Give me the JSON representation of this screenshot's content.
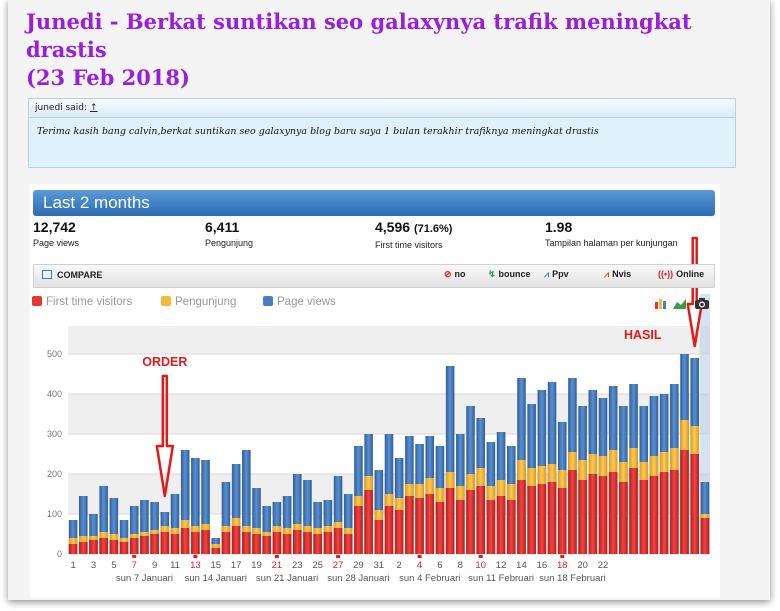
{
  "post": {
    "title_line1": "Junedi - Berkat suntikan seo galaxynya trafik meningkat drastis",
    "title_line2": "(23 Feb 2018)"
  },
  "quote": {
    "author_label": "junedi said:",
    "separator": "↑",
    "text": "Terima kasih bang calvin,berkat suntikan seo galaxynya blog baru saya 1 bulan terakhir trafiknya meningkat drastis"
  },
  "stats": {
    "period": "Last 2 months",
    "metrics": [
      {
        "value": "12,742",
        "suffix": "",
        "label": "Page views"
      },
      {
        "value": "6,411",
        "suffix": "",
        "label": "Pengunjung"
      },
      {
        "value": "4,596",
        "suffix": "(71.6%)",
        "label": "First time visitors"
      },
      {
        "value": "1.98",
        "suffix": "",
        "label": "Tampilan halaman per kunjungan"
      }
    ],
    "toolbar": {
      "compare": "COMPARE",
      "buttons": [
        {
          "icon": "no-icon",
          "label": "no"
        },
        {
          "icon": "bounce-icon",
          "label": "bounce"
        },
        {
          "icon": "ppv-icon",
          "label": "Ppv"
        },
        {
          "icon": "nvis-icon",
          "label": "Nvis"
        },
        {
          "icon": "online-icon",
          "label": "Online"
        }
      ]
    },
    "legend": [
      {
        "label": "First time visitors",
        "color": "#e53535"
      },
      {
        "label": "Pengunjung",
        "color": "#f5b93a"
      },
      {
        "label": "Page views",
        "color": "#4a7fbf"
      }
    ],
    "tools": [
      "bar-chart-icon",
      "area-chart-icon",
      "camera-icon"
    ]
  },
  "annotations": {
    "order": "ORDER",
    "result": "HASIL"
  },
  "chart_data": {
    "type": "bar",
    "stacked_overlay": true,
    "ylim": [
      0,
      550
    ],
    "yticks": [
      0,
      100,
      200,
      300,
      400,
      500
    ],
    "grid": true,
    "legend_position": "top-left",
    "xtick_labels": [
      "1",
      "3",
      "5",
      "7",
      "9",
      "11",
      "13",
      "15",
      "17",
      "19",
      "21",
      "23",
      "25",
      "27",
      "29",
      "31",
      "2",
      "4",
      "6",
      "8",
      "10",
      "12",
      "14",
      "16",
      "18",
      "20",
      "22"
    ],
    "xtick_weekend": [
      "7",
      "13",
      "21",
      "27",
      "4",
      "10",
      "18"
    ],
    "week_labels": [
      "sun 7 Januari",
      "sun 14 Januari",
      "sun 21 Januari",
      "sun 28 Januari",
      "sun 4 Februari",
      "sun 11 Februari",
      "sun 18 Februari"
    ],
    "series": [
      {
        "name": "Page views",
        "values": [
          85,
          145,
          100,
          170,
          140,
          85,
          120,
          135,
          130,
          105,
          150,
          260,
          240,
          235,
          40,
          180,
          225,
          260,
          165,
          120,
          130,
          145,
          200,
          185,
          130,
          135,
          195,
          150,
          270,
          300,
          210,
          300,
          240,
          295,
          275,
          295,
          270,
          470,
          300,
          370,
          340,
          280,
          305,
          270,
          440,
          375,
          410,
          430,
          330,
          440,
          370,
          410,
          390,
          420,
          370,
          425,
          370,
          395,
          400,
          425,
          500,
          490,
          180
        ]
      },
      {
        "name": "Pengunjung",
        "values": [
          40,
          45,
          45,
          55,
          50,
          40,
          50,
          55,
          60,
          70,
          65,
          85,
          70,
          75,
          25,
          70,
          90,
          70,
          65,
          55,
          70,
          65,
          75,
          70,
          65,
          70,
          80,
          65,
          145,
          195,
          110,
          150,
          140,
          175,
          175,
          190,
          165,
          205,
          170,
          200,
          215,
          170,
          185,
          175,
          235,
          215,
          220,
          225,
          210,
          255,
          235,
          250,
          245,
          260,
          230,
          265,
          230,
          245,
          255,
          265,
          335,
          320,
          100
        ]
      },
      {
        "name": "First time visitors",
        "values": [
          25,
          30,
          35,
          40,
          35,
          30,
          40,
          45,
          50,
          55,
          50,
          65,
          55,
          60,
          15,
          55,
          70,
          55,
          50,
          45,
          55,
          50,
          60,
          55,
          50,
          55,
          65,
          50,
          120,
          160,
          85,
          120,
          110,
          145,
          140,
          150,
          130,
          165,
          135,
          160,
          170,
          135,
          145,
          135,
          185,
          170,
          175,
          180,
          165,
          210,
          185,
          200,
          195,
          205,
          180,
          215,
          185,
          195,
          205,
          210,
          260,
          250,
          90
        ]
      }
    ]
  }
}
